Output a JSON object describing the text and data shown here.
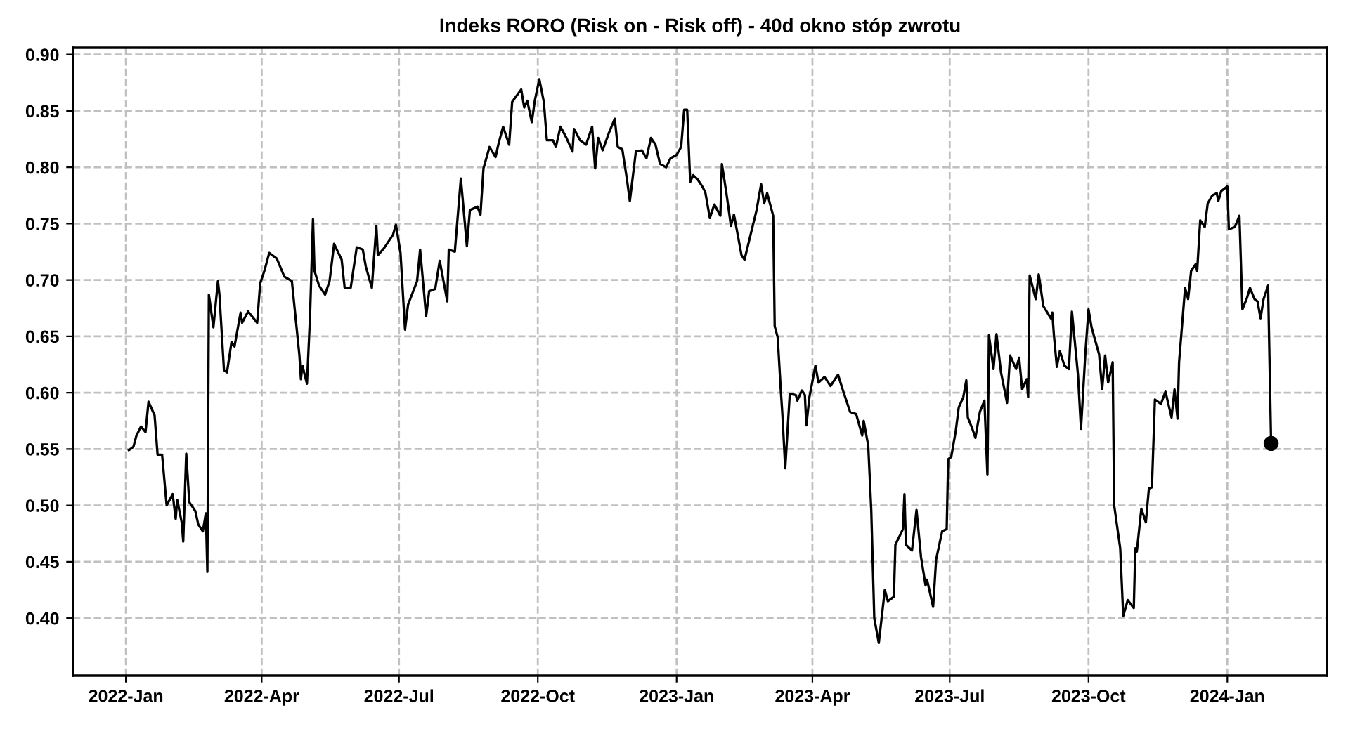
{
  "chart_data": {
    "type": "line",
    "title": "Indeks RORO (Risk on - Risk off) - 40d okno stóp zwrotu",
    "xlim": [
      "2021-11-27",
      "2024-03-07"
    ],
    "ylim": [
      0.349,
      0.906
    ],
    "xticks": [
      {
        "value": "2022-01-01",
        "label": "2022-Jan"
      },
      {
        "value": "2022-04-01",
        "label": "2022-Apr"
      },
      {
        "value": "2022-07-01",
        "label": "2022-Jul"
      },
      {
        "value": "2022-10-01",
        "label": "2022-Oct"
      },
      {
        "value": "2023-01-01",
        "label": "2023-Jan"
      },
      {
        "value": "2023-04-01",
        "label": "2023-Apr"
      },
      {
        "value": "2023-07-01",
        "label": "2023-Jul"
      },
      {
        "value": "2023-10-01",
        "label": "2023-Oct"
      },
      {
        "value": "2024-01-01",
        "label": "2024-Jan"
      }
    ],
    "yticks": [
      {
        "value": 0.4,
        "label": "0.40"
      },
      {
        "value": 0.45,
        "label": "0.45"
      },
      {
        "value": 0.5,
        "label": "0.50"
      },
      {
        "value": 0.55,
        "label": "0.55"
      },
      {
        "value": 0.6,
        "label": "0.60"
      },
      {
        "value": 0.65,
        "label": "0.65"
      },
      {
        "value": 0.7,
        "label": "0.70"
      },
      {
        "value": 0.75,
        "label": "0.75"
      },
      {
        "value": 0.8,
        "label": "0.80"
      },
      {
        "value": 0.85,
        "label": "0.85"
      },
      {
        "value": 0.9,
        "label": "0.90"
      }
    ],
    "grid": true,
    "line_style": "solid",
    "series": [
      {
        "color": "#000000",
        "x": [
          "2022-01-03",
          "2022-01-06",
          "2022-01-08",
          "2022-01-11",
          "2022-01-14",
          "2022-01-16",
          "2022-01-20",
          "2022-01-22",
          "2022-01-25",
          "2022-01-28",
          "2022-02-01",
          "2022-02-03",
          "2022-02-04",
          "2022-02-07",
          "2022-02-08",
          "2022-02-10",
          "2022-02-12",
          "2022-02-16",
          "2022-02-18",
          "2022-02-21",
          "2022-02-23",
          "2022-02-24",
          "2022-02-25",
          "2022-02-28",
          "2022-03-03",
          "2022-03-04",
          "2022-03-07",
          "2022-03-09",
          "2022-03-12",
          "2022-03-14",
          "2022-03-18",
          "2022-03-19",
          "2022-03-23",
          "2022-03-29",
          "2022-03-31",
          "2022-04-03",
          "2022-04-06",
          "2022-04-11",
          "2022-04-16",
          "2022-04-21",
          "2022-04-26",
          "2022-04-27",
          "2022-04-28",
          "2022-05-01",
          "2022-05-03",
          "2022-05-05",
          "2022-05-06",
          "2022-05-09",
          "2022-05-13",
          "2022-05-16",
          "2022-05-19",
          "2022-05-24",
          "2022-05-26",
          "2022-05-30",
          "2022-06-03",
          "2022-06-07",
          "2022-06-09",
          "2022-06-13",
          "2022-06-16",
          "2022-06-17",
          "2022-06-21",
          "2022-06-27",
          "2022-06-29",
          "2022-07-02",
          "2022-07-05",
          "2022-07-07",
          "2022-07-13",
          "2022-07-15",
          "2022-07-19",
          "2022-07-21",
          "2022-07-25",
          "2022-07-28",
          "2022-08-02",
          "2022-08-03",
          "2022-08-07",
          "2022-08-11",
          "2022-08-15",
          "2022-08-17",
          "2022-08-22",
          "2022-08-24",
          "2022-08-26",
          "2022-08-30",
          "2022-09-03",
          "2022-09-05",
          "2022-09-08",
          "2022-09-12",
          "2022-09-14",
          "2022-09-20",
          "2022-09-22",
          "2022-09-24",
          "2022-09-27",
          "2022-09-29",
          "2022-10-02",
          "2022-10-05",
          "2022-10-07",
          "2022-10-11",
          "2022-10-13",
          "2022-10-16",
          "2022-10-20",
          "2022-10-24",
          "2022-10-25",
          "2022-10-29",
          "2022-11-02",
          "2022-11-06",
          "2022-11-08",
          "2022-11-10",
          "2022-11-13",
          "2022-11-17",
          "2022-11-21",
          "2022-11-23",
          "2022-11-26",
          "2022-11-29",
          "2022-12-01",
          "2022-12-05",
          "2022-12-09",
          "2022-12-12",
          "2022-12-15",
          "2022-12-18",
          "2022-12-21",
          "2022-12-25",
          "2022-12-28",
          "2023-01-01",
          "2023-01-04",
          "2023-01-06",
          "2023-01-08",
          "2023-01-10",
          "2023-01-12",
          "2023-01-15",
          "2023-01-18",
          "2023-01-20",
          "2023-01-23",
          "2023-01-26",
          "2023-01-30",
          "2023-01-31",
          "2023-02-03",
          "2023-02-06",
          "2023-02-08",
          "2023-02-13",
          "2023-02-15",
          "2023-02-19",
          "2023-02-23",
          "2023-02-26",
          "2023-02-28",
          "2023-03-02",
          "2023-03-06",
          "2023-03-07",
          "2023-03-09",
          "2023-03-11",
          "2023-03-12",
          "2023-03-14",
          "2023-03-17",
          "2023-03-21",
          "2023-03-22",
          "2023-03-25",
          "2023-03-27",
          "2023-03-28",
          "2023-03-30",
          "2023-04-03",
          "2023-04-05",
          "2023-04-09",
          "2023-04-13",
          "2023-04-18",
          "2023-04-21",
          "2023-04-26",
          "2023-04-30",
          "2023-05-04",
          "2023-05-05",
          "2023-05-08",
          "2023-05-10",
          "2023-05-12",
          "2023-05-15",
          "2023-05-19",
          "2023-05-21",
          "2023-05-25",
          "2023-05-26",
          "2023-05-31",
          "2023-06-01",
          "2023-06-02",
          "2023-06-06",
          "2023-06-09",
          "2023-06-12",
          "2023-06-15",
          "2023-06-16",
          "2023-06-20",
          "2023-06-22",
          "2023-06-26",
          "2023-06-29",
          "2023-06-30",
          "2023-07-02",
          "2023-07-05",
          "2023-07-07",
          "2023-07-10",
          "2023-07-12",
          "2023-07-13",
          "2023-07-16",
          "2023-07-18",
          "2023-07-21",
          "2023-07-24",
          "2023-07-26",
          "2023-07-27",
          "2023-07-30",
          "2023-08-01",
          "2023-08-04",
          "2023-08-08",
          "2023-08-10",
          "2023-08-14",
          "2023-08-16",
          "2023-08-18",
          "2023-08-21",
          "2023-08-22",
          "2023-08-23",
          "2023-08-27",
          "2023-08-29",
          "2023-09-01",
          "2023-09-06",
          "2023-09-07",
          "2023-09-08",
          "2023-09-10",
          "2023-09-12",
          "2023-09-15",
          "2023-09-18",
          "2023-09-20",
          "2023-09-24",
          "2023-09-26",
          "2023-09-29",
          "2023-10-01",
          "2023-10-03",
          "2023-10-08",
          "2023-10-10",
          "2023-10-12",
          "2023-10-14",
          "2023-10-17",
          "2023-10-18",
          "2023-10-22",
          "2023-10-24",
          "2023-10-27",
          "2023-10-31",
          "2023-11-01",
          "2023-11-02",
          "2023-11-05",
          "2023-11-08",
          "2023-11-10",
          "2023-11-12",
          "2023-11-14",
          "2023-11-18",
          "2023-11-21",
          "2023-11-25",
          "2023-11-27",
          "2023-11-29",
          "2023-11-30",
          "2023-12-04",
          "2023-12-06",
          "2023-12-08",
          "2023-12-11",
          "2023-12-12",
          "2023-12-14",
          "2023-12-17",
          "2023-12-19",
          "2023-12-22",
          "2023-12-25",
          "2023-12-26",
          "2023-12-28",
          "2024-01-01",
          "2024-01-02",
          "2024-01-06",
          "2024-01-09",
          "2024-01-11",
          "2024-01-14",
          "2024-01-16",
          "2024-01-19",
          "2024-01-21",
          "2024-01-23",
          "2024-01-25",
          "2024-01-28",
          "2024-01-30"
        ],
        "values": [
          0.549,
          0.552,
          0.562,
          0.57,
          0.565,
          0.592,
          0.58,
          0.545,
          0.545,
          0.5,
          0.51,
          0.488,
          0.505,
          0.485,
          0.468,
          0.546,
          0.503,
          0.495,
          0.483,
          0.477,
          0.493,
          0.441,
          0.687,
          0.658,
          0.699,
          0.687,
          0.62,
          0.618,
          0.645,
          0.641,
          0.671,
          0.662,
          0.672,
          0.662,
          0.697,
          0.709,
          0.724,
          0.719,
          0.703,
          0.699,
          0.633,
          0.612,
          0.624,
          0.608,
          0.666,
          0.754,
          0.708,
          0.695,
          0.687,
          0.699,
          0.732,
          0.718,
          0.693,
          0.693,
          0.729,
          0.727,
          0.712,
          0.693,
          0.748,
          0.722,
          0.728,
          0.74,
          0.749,
          0.724,
          0.656,
          0.678,
          0.699,
          0.727,
          0.668,
          0.69,
          0.692,
          0.717,
          0.681,
          0.727,
          0.725,
          0.79,
          0.73,
          0.762,
          0.765,
          0.758,
          0.799,
          0.818,
          0.809,
          0.821,
          0.836,
          0.82,
          0.858,
          0.869,
          0.853,
          0.859,
          0.84,
          0.859,
          0.878,
          0.858,
          0.824,
          0.824,
          0.818,
          0.836,
          0.826,
          0.814,
          0.834,
          0.824,
          0.82,
          0.836,
          0.799,
          0.826,
          0.815,
          0.83,
          0.843,
          0.818,
          0.816,
          0.79,
          0.77,
          0.814,
          0.815,
          0.808,
          0.826,
          0.82,
          0.803,
          0.8,
          0.808,
          0.811,
          0.818,
          0.851,
          0.851,
          0.787,
          0.793,
          0.789,
          0.783,
          0.778,
          0.755,
          0.767,
          0.757,
          0.803,
          0.777,
          0.748,
          0.758,
          0.722,
          0.718,
          0.74,
          0.762,
          0.785,
          0.768,
          0.777,
          0.757,
          0.659,
          0.649,
          0.603,
          0.583,
          0.533,
          0.599,
          0.598,
          0.593,
          0.602,
          0.598,
          0.571,
          0.596,
          0.624,
          0.609,
          0.614,
          0.606,
          0.616,
          0.603,
          0.583,
          0.581,
          0.562,
          0.575,
          0.553,
          0.496,
          0.4,
          0.378,
          0.425,
          0.415,
          0.419,
          0.465,
          0.479,
          0.51,
          0.465,
          0.46,
          0.496,
          0.454,
          0.429,
          0.434,
          0.41,
          0.452,
          0.477,
          0.479,
          0.541,
          0.543,
          0.566,
          0.587,
          0.596,
          0.611,
          0.578,
          0.568,
          0.56,
          0.583,
          0.593,
          0.527,
          0.651,
          0.621,
          0.652,
          0.618,
          0.591,
          0.633,
          0.621,
          0.631,
          0.603,
          0.612,
          0.596,
          0.704,
          0.683,
          0.705,
          0.677,
          0.666,
          0.671,
          0.652,
          0.623,
          0.637,
          0.624,
          0.621,
          0.672,
          0.616,
          0.568,
          0.637,
          0.674,
          0.658,
          0.634,
          0.603,
          0.633,
          0.609,
          0.627,
          0.5,
          0.462,
          0.402,
          0.416,
          0.409,
          0.462,
          0.459,
          0.497,
          0.485,
          0.515,
          0.516,
          0.594,
          0.59,
          0.601,
          0.578,
          0.603,
          0.577,
          0.627,
          0.693,
          0.683,
          0.708,
          0.714,
          0.708,
          0.753,
          0.747,
          0.768,
          0.775,
          0.777,
          0.77,
          0.779,
          0.783,
          0.745,
          0.747,
          0.757,
          0.674,
          0.684,
          0.693,
          0.683,
          0.681,
          0.666,
          0.683,
          0.695,
          0.555
        ]
      },
      {
        "type": "scatter",
        "color": "#000000",
        "marker": "circle",
        "x": [
          "2024-01-30"
        ],
        "values": [
          0.555
        ]
      }
    ]
  }
}
